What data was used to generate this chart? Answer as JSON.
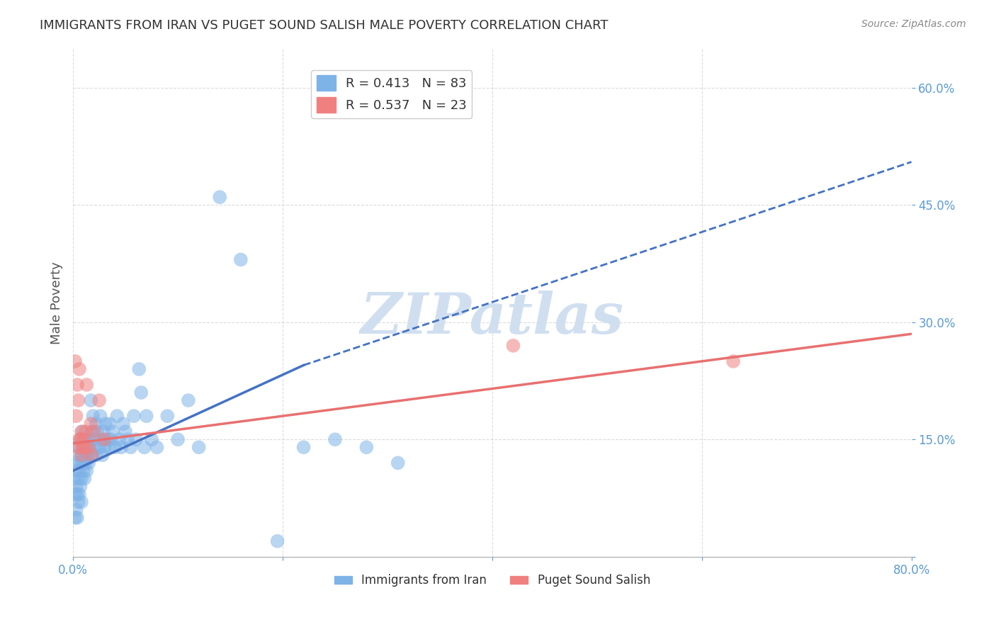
{
  "title": "IMMIGRANTS FROM IRAN VS PUGET SOUND SALISH MALE POVERTY CORRELATION CHART",
  "source": "Source: ZipAtlas.com",
  "xlabel": "",
  "ylabel": "Male Poverty",
  "xlim": [
    0.0,
    0.8
  ],
  "ylim": [
    0.0,
    0.65
  ],
  "yticks": [
    0.0,
    0.15,
    0.3,
    0.45,
    0.6
  ],
  "xticks": [
    0.0,
    0.2,
    0.4,
    0.6,
    0.8
  ],
  "xtick_labels": [
    "0.0%",
    "",
    "",
    "",
    "80.0%"
  ],
  "ytick_labels": [
    "",
    "15.0%",
    "30.0%",
    "45.0%",
    "60.0%"
  ],
  "legend_entries": [
    {
      "label": "R = 0.413   N = 83",
      "color": "#7eb3e8"
    },
    {
      "label": "R = 0.537   N = 23",
      "color": "#f08080"
    }
  ],
  "series1": {
    "name": "Immigrants from Iran",
    "color": "#7eb3e8",
    "R": 0.413,
    "N": 83,
    "x": [
      0.001,
      0.002,
      0.002,
      0.003,
      0.003,
      0.003,
      0.004,
      0.004,
      0.004,
      0.005,
      0.005,
      0.005,
      0.006,
      0.006,
      0.006,
      0.007,
      0.007,
      0.007,
      0.008,
      0.008,
      0.008,
      0.009,
      0.009,
      0.01,
      0.01,
      0.011,
      0.011,
      0.012,
      0.012,
      0.013,
      0.013,
      0.014,
      0.015,
      0.015,
      0.016,
      0.017,
      0.018,
      0.018,
      0.019,
      0.02,
      0.021,
      0.022,
      0.022,
      0.023,
      0.025,
      0.026,
      0.027,
      0.028,
      0.029,
      0.03,
      0.031,
      0.033,
      0.034,
      0.035,
      0.036,
      0.038,
      0.04,
      0.042,
      0.044,
      0.046,
      0.048,
      0.05,
      0.052,
      0.055,
      0.058,
      0.06,
      0.063,
      0.065,
      0.068,
      0.07,
      0.075,
      0.08,
      0.09,
      0.1,
      0.11,
      0.12,
      0.14,
      0.16,
      0.195,
      0.22,
      0.25,
      0.28,
      0.31
    ],
    "y": [
      0.1,
      0.08,
      0.05,
      0.12,
      0.09,
      0.06,
      0.11,
      0.08,
      0.05,
      0.13,
      0.1,
      0.07,
      0.14,
      0.11,
      0.08,
      0.15,
      0.12,
      0.09,
      0.13,
      0.1,
      0.07,
      0.16,
      0.12,
      0.14,
      0.11,
      0.13,
      0.1,
      0.15,
      0.12,
      0.14,
      0.11,
      0.13,
      0.15,
      0.12,
      0.14,
      0.2,
      0.16,
      0.13,
      0.18,
      0.15,
      0.14,
      0.17,
      0.13,
      0.16,
      0.14,
      0.18,
      0.15,
      0.13,
      0.16,
      0.14,
      0.17,
      0.15,
      0.14,
      0.17,
      0.15,
      0.16,
      0.14,
      0.18,
      0.15,
      0.14,
      0.17,
      0.16,
      0.15,
      0.14,
      0.18,
      0.15,
      0.24,
      0.21,
      0.14,
      0.18,
      0.15,
      0.14,
      0.18,
      0.15,
      0.2,
      0.14,
      0.46,
      0.38,
      0.02,
      0.14,
      0.15,
      0.14,
      0.12
    ]
  },
  "series2": {
    "name": "Puget Sound Salish",
    "color": "#f08080",
    "R": 0.537,
    "N": 23,
    "x": [
      0.002,
      0.003,
      0.004,
      0.005,
      0.005,
      0.006,
      0.006,
      0.007,
      0.008,
      0.008,
      0.009,
      0.01,
      0.011,
      0.012,
      0.013,
      0.015,
      0.017,
      0.02,
      0.025,
      0.03,
      0.42,
      0.63,
      0.018
    ],
    "y": [
      0.25,
      0.18,
      0.22,
      0.14,
      0.2,
      0.15,
      0.24,
      0.15,
      0.16,
      0.13,
      0.14,
      0.15,
      0.14,
      0.16,
      0.22,
      0.14,
      0.17,
      0.16,
      0.2,
      0.15,
      0.27,
      0.25,
      0.13
    ]
  },
  "trend1": {
    "x_start": 0.0,
    "x_end": 0.8,
    "y_start": 0.11,
    "y_end": 0.505,
    "color": "#4472c4",
    "style": "dashed"
  },
  "trend1_solid": {
    "x_start": 0.0,
    "x_end": 0.22,
    "y_start": 0.11,
    "y_end": 0.245,
    "color": "#4472c4",
    "style": "solid"
  },
  "trend2": {
    "x_start": 0.0,
    "x_end": 0.8,
    "y_start": 0.145,
    "y_end": 0.285,
    "color": "#e87070",
    "style": "solid"
  },
  "watermark": "ZIPatlas",
  "watermark_color": "#d0dff0",
  "background_color": "#ffffff",
  "grid_color": "#cccccc",
  "title_color": "#333333",
  "axis_label_color": "#555555",
  "tick_label_color": "#5b9bd5"
}
